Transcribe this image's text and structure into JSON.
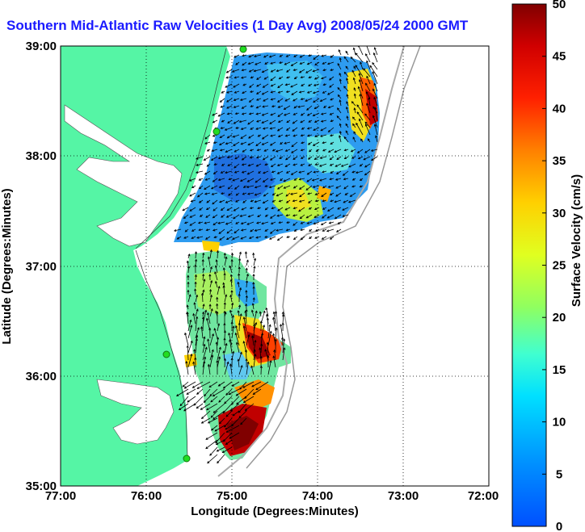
{
  "title": "Southern Mid-Atlantic Raw Velocities (1 Day Avg) 2008/05/24 2000 GMT",
  "xaxis": {
    "label": "Longitude (Degrees:Minutes)",
    "ticks": [
      "77:00",
      "76:00",
      "75:00",
      "74:00",
      "73:00",
      "72:00"
    ]
  },
  "yaxis": {
    "label": "Latitude (Degrees:Minutes)",
    "ticks": [
      "39:00",
      "38:00",
      "37:00",
      "36:00",
      "35:00"
    ]
  },
  "colorbar": {
    "label": "Surface Velocity (cm/s)",
    "ticks": [
      "50",
      "45",
      "40",
      "35",
      "30",
      "25",
      "20",
      "15",
      "10",
      "5",
      "0"
    ],
    "range": [
      0,
      50
    ]
  },
  "colors": {
    "land": "#55f5a5",
    "title": "#1a1aff",
    "station": "#22dd22"
  }
}
